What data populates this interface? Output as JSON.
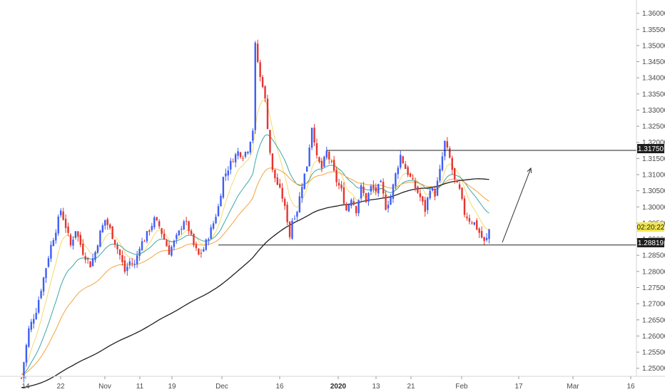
{
  "chart_data": {
    "type": "candlestick",
    "instrument_hint": "",
    "x_axis_labels": [
      "14",
      "22",
      "Nov",
      "11",
      "19",
      "Dec",
      "16",
      "2020",
      "13",
      "21",
      "Feb",
      "17",
      "Mar",
      "16"
    ],
    "y_axis_ticks": [
      "1.25000",
      "1.25500",
      "1.26000",
      "1.26500",
      "1.27000",
      "1.27500",
      "1.28000",
      "1.28500",
      "1.29000",
      "1.29500",
      "1.30000",
      "1.30500",
      "1.31000",
      "1.31500",
      "1.32000",
      "1.32500",
      "1.33000",
      "1.33500",
      "1.34000",
      "1.34500",
      "1.35000",
      "1.35500",
      "1.36000"
    ],
    "ylim": [
      1.2475,
      1.364
    ],
    "price_badges": {
      "resistance": "1.31750",
      "countdown": "02:20:22",
      "support": "1.28819"
    },
    "levels": {
      "resistance": 1.3175,
      "support": 1.28819
    },
    "colors": {
      "up": "#3f5df5",
      "down": "#e5342f",
      "ema_fast": "#f3da6e",
      "ema_mid": "#3aa7a6",
      "ema_slow": "#f5a23c",
      "sma_long": "#1f1f1f",
      "axis_text": "#4a4a4a",
      "badge_dark": "#1e1e1e",
      "badge_yellow": "#f1e651"
    },
    "price_path": [
      [
        0,
        1.247
      ],
      [
        3,
        1.262
      ],
      [
        6,
        1.268
      ],
      [
        9,
        1.278
      ],
      [
        12,
        1.288
      ],
      [
        14,
        1.293
      ],
      [
        16,
        1.299
      ],
      [
        18,
        1.294
      ],
      [
        20,
        1.288
      ],
      [
        22,
        1.293
      ],
      [
        25,
        1.286
      ],
      [
        28,
        1.282
      ],
      [
        30,
        1.286
      ],
      [
        32,
        1.292
      ],
      [
        34,
        1.296
      ],
      [
        36,
        1.293
      ],
      [
        38,
        1.289
      ],
      [
        40,
        1.285
      ],
      [
        42,
        1.28
      ],
      [
        44,
        1.283
      ],
      [
        46,
        1.282
      ],
      [
        48,
        1.288
      ],
      [
        50,
        1.29
      ],
      [
        52,
        1.293
      ],
      [
        54,
        1.296
      ],
      [
        56,
        1.294
      ],
      [
        58,
        1.29
      ],
      [
        60,
        1.286
      ],
      [
        62,
        1.289
      ],
      [
        64,
        1.292
      ],
      [
        66,
        1.296
      ],
      [
        68,
        1.293
      ],
      [
        70,
        1.288
      ],
      [
        72,
        1.285
      ],
      [
        74,
        1.287
      ],
      [
        76,
        1.291
      ],
      [
        78,
        1.295
      ],
      [
        80,
        1.3
      ],
      [
        82,
        1.309
      ],
      [
        84,
        1.312
      ],
      [
        86,
        1.315
      ],
      [
        88,
        1.317
      ],
      [
        90,
        1.316
      ],
      [
        92,
        1.318
      ],
      [
        94,
        1.324
      ],
      [
        95,
        1.35
      ],
      [
        96,
        1.345
      ],
      [
        97,
        1.34
      ],
      [
        98,
        1.338
      ],
      [
        99,
        1.333
      ],
      [
        100,
        1.325
      ],
      [
        101,
        1.317
      ],
      [
        102,
        1.311
      ],
      [
        104,
        1.307
      ],
      [
        106,
        1.303
      ],
      [
        108,
        1.296
      ],
      [
        109,
        1.291
      ],
      [
        110,
        1.296
      ],
      [
        112,
        1.299
      ],
      [
        114,
        1.307
      ],
      [
        116,
        1.313
      ],
      [
        118,
        1.325
      ],
      [
        119,
        1.321
      ],
      [
        120,
        1.315
      ],
      [
        122,
        1.312
      ],
      [
        124,
        1.317
      ],
      [
        126,
        1.313
      ],
      [
        128,
        1.308
      ],
      [
        130,
        1.305
      ],
      [
        132,
        1.299
      ],
      [
        134,
        1.303
      ],
      [
        136,
        1.299
      ],
      [
        138,
        1.306
      ],
      [
        140,
        1.302
      ],
      [
        142,
        1.306
      ],
      [
        144,
        1.305
      ],
      [
        146,
        1.307
      ],
      [
        148,
        1.3
      ],
      [
        150,
        1.303
      ],
      [
        152,
        1.31
      ],
      [
        154,
        1.316
      ],
      [
        156,
        1.312
      ],
      [
        158,
        1.309
      ],
      [
        160,
        1.306
      ],
      [
        162,
        1.303
      ],
      [
        164,
        1.299
      ],
      [
        166,
        1.306
      ],
      [
        168,
        1.304
      ],
      [
        170,
        1.311
      ],
      [
        172,
        1.32
      ],
      [
        174,
        1.315
      ],
      [
        176,
        1.308
      ],
      [
        178,
        1.305
      ],
      [
        180,
        1.298
      ],
      [
        182,
        1.296
      ],
      [
        184,
        1.295
      ],
      [
        186,
        1.292
      ],
      [
        188,
        1.289
      ],
      [
        189,
        1.29
      ],
      [
        190,
        1.293
      ]
    ],
    "projection_arrow": {
      "from": [
        191,
        1.289
      ],
      "to": [
        202,
        1.312
      ]
    }
  }
}
